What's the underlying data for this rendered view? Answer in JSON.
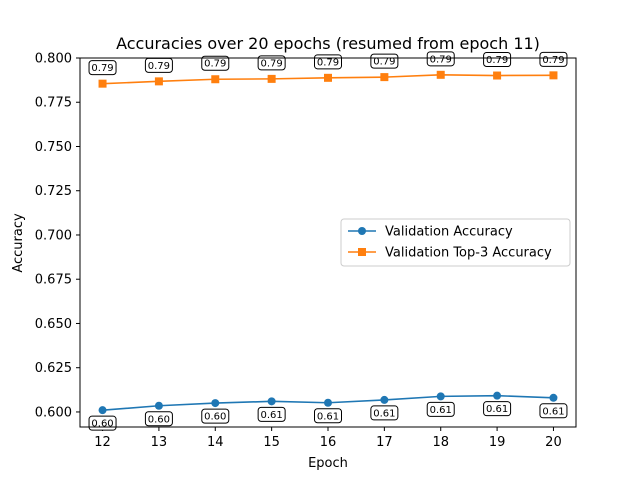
{
  "chart_data": {
    "type": "line",
    "title": "Accuracies over 20 epochs (resumed from epoch 11)",
    "xlabel": "Epoch",
    "ylabel": "Accuracy",
    "x": [
      12,
      13,
      14,
      15,
      16,
      17,
      18,
      19,
      20
    ],
    "xlim": [
      11.6,
      20.4
    ],
    "ylim": [
      0.5915,
      0.8
    ],
    "yticks": [
      0.6,
      0.625,
      0.65,
      0.675,
      0.7,
      0.725,
      0.75,
      0.775,
      0.8
    ],
    "ytick_labels": [
      "0.600",
      "0.625",
      "0.650",
      "0.675",
      "0.700",
      "0.725",
      "0.750",
      "0.775",
      "0.800"
    ],
    "xticks": [
      12,
      13,
      14,
      15,
      16,
      17,
      18,
      19,
      20
    ],
    "xtick_labels": [
      "12",
      "13",
      "14",
      "15",
      "16",
      "17",
      "18",
      "19",
      "20"
    ],
    "grid": false,
    "legend_position": "center-right",
    "series": [
      {
        "name": "Validation Accuracy",
        "color": "#1f77b4",
        "marker": "circle",
        "values": [
          0.601,
          0.6035,
          0.605,
          0.606,
          0.6052,
          0.6068,
          0.6088,
          0.6092,
          0.608
        ],
        "data_labels": [
          "0.60",
          "0.60",
          "0.60",
          "0.61",
          "0.61",
          "0.61",
          "0.61",
          "0.61",
          "0.61"
        ],
        "label_side": "below"
      },
      {
        "name": "Validation Top-3 Accuracy",
        "color": "#ff7f0e",
        "marker": "square",
        "values": [
          0.7855,
          0.7868,
          0.788,
          0.7882,
          0.7888,
          0.7892,
          0.7905,
          0.7901,
          0.7902
        ],
        "data_labels": [
          "0.79",
          "0.79",
          "0.79",
          "0.79",
          "0.79",
          "0.79",
          "0.79",
          "0.79",
          "0.79"
        ],
        "label_side": "above"
      }
    ]
  }
}
